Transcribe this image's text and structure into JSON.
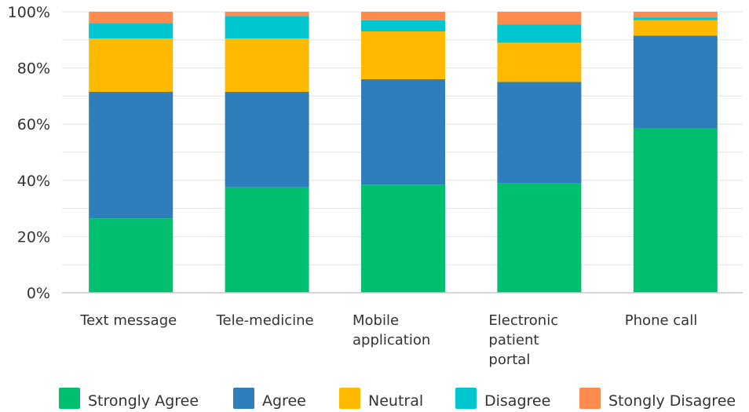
{
  "chart_data": {
    "type": "bar",
    "stacked": true,
    "normalized": true,
    "categories": [
      [
        "Text message"
      ],
      [
        "Tele-medicine"
      ],
      [
        "Mobile",
        "application"
      ],
      [
        "Electronic",
        "patient",
        "portal"
      ],
      [
        "Phone call"
      ]
    ],
    "series": [
      {
        "name": "Strongly Agree",
        "color": "#00bf6f",
        "values": [
          26.5,
          37.5,
          38.5,
          39,
          58.5
        ]
      },
      {
        "name": "Agree",
        "color": "#2e7ebc",
        "values": [
          45,
          34,
          37.5,
          36,
          33
        ]
      },
      {
        "name": "Neutral",
        "color": "#ffba00",
        "values": [
          19,
          19,
          17,
          14,
          5.5
        ]
      },
      {
        "name": "Disagree",
        "color": "#00c6d0",
        "values": [
          5.5,
          8,
          4,
          6.5,
          1
        ]
      },
      {
        "name": "Stongly Disagree",
        "color": "#ff8b4f",
        "values": [
          4,
          1.5,
          3,
          4.5,
          2
        ]
      }
    ],
    "yticks": [
      "0%",
      "20%",
      "40%",
      "60%",
      "80%",
      "100%"
    ],
    "ylim": [
      0,
      100
    ],
    "grid": true,
    "legend": "bottom"
  }
}
